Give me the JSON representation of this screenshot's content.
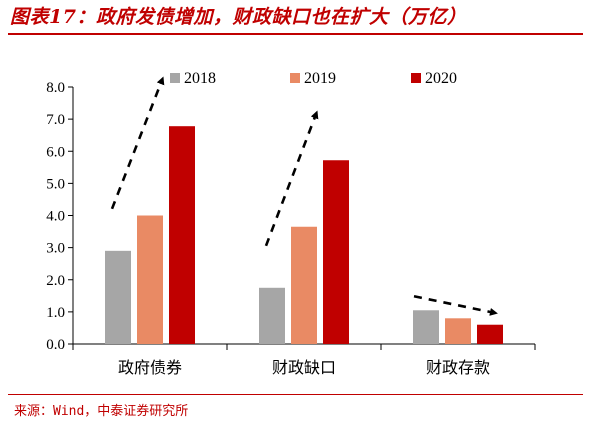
{
  "header": {
    "title": "图表17：政府发债增加，财政缺口也在扩大（万亿）"
  },
  "footer": {
    "source": "来源：Wind，中泰证券研究所"
  },
  "chart_data": {
    "type": "bar",
    "categories": [
      "政府债券",
      "财政缺口",
      "财政存款"
    ],
    "series": [
      {
        "name": "2018",
        "values": [
          2.9,
          1.75,
          1.05
        ],
        "color": "#a6a6a6"
      },
      {
        "name": "2019",
        "values": [
          4.0,
          3.65,
          0.8
        ],
        "color": "#e98a64"
      },
      {
        "name": "2020",
        "values": [
          6.78,
          5.72,
          0.6
        ],
        "color": "#c00000"
      }
    ],
    "yticks": [
      "0.0",
      "1.0",
      "2.0",
      "3.0",
      "4.0",
      "5.0",
      "6.0",
      "7.0",
      "8.0"
    ],
    "ylim": [
      0,
      8
    ],
    "legend_position": "top",
    "annotations": [
      {
        "type": "dashed-arrow",
        "direction": "up",
        "category": "政府债券"
      },
      {
        "type": "dashed-arrow",
        "direction": "up",
        "category": "财政缺口"
      },
      {
        "type": "dashed-arrow",
        "direction": "down",
        "category": "财政存款"
      }
    ]
  }
}
